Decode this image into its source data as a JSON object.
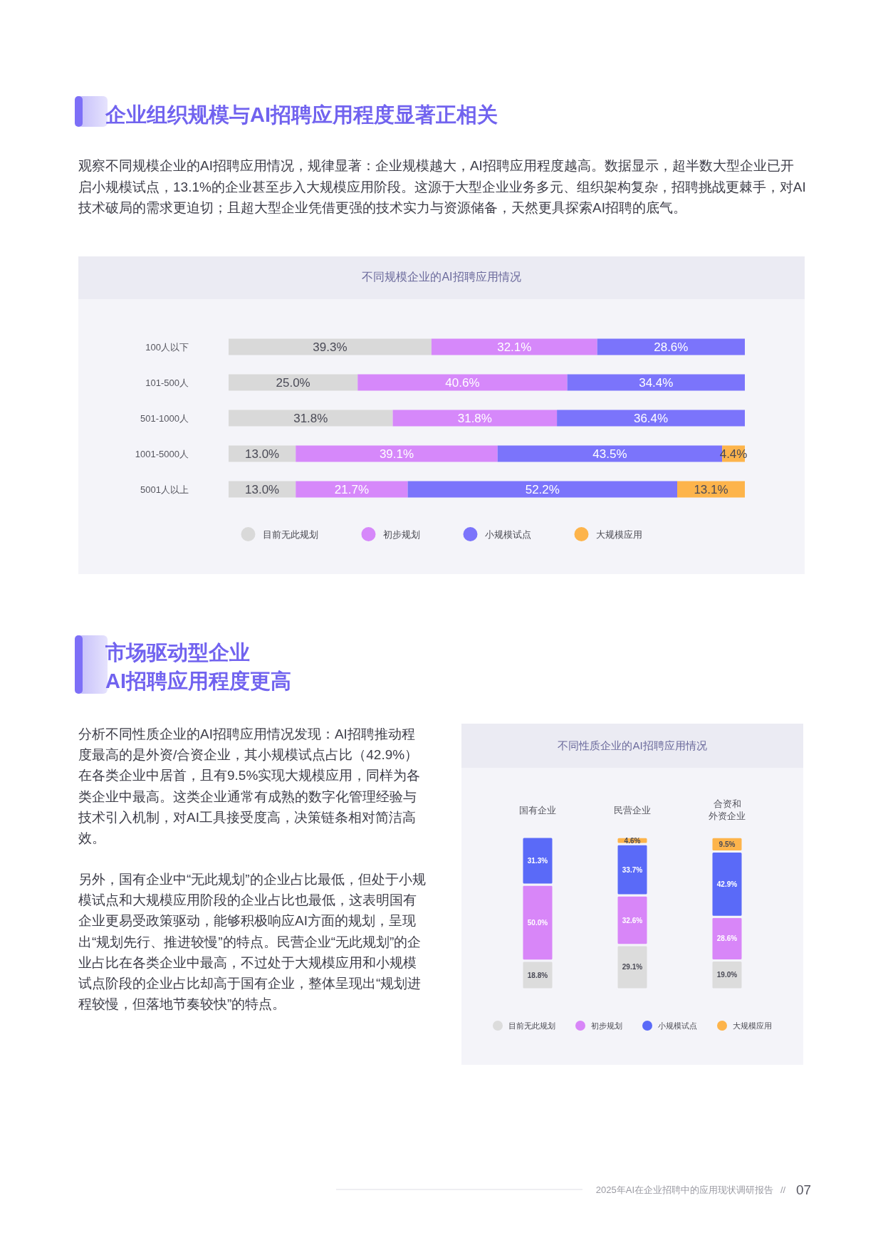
{
  "chart_data": [
    {
      "type": "bar",
      "orientation": "horizontal",
      "stacked": true,
      "title": "不同规模企业的AI招聘应用情况",
      "annotations": [
        "企业组织规模与AI招聘应用程度显著正相关",
        "观察不同规模企业的AI招聘应用情况，规律显著：企业规模越大，AI招聘应用程度越高。数据显示，超半数大型企业已开启小规模试点，13.1%的企业甚至步入大规模应用阶段。这源于大型企业业务多元、组织架构复杂，招聘挑战更棘手，对AI技术破局的需求更迫切；且超大型企业凭借更强的技术实力与资源储备，天然更具探索AI招聘的底气。"
      ],
      "categories": [
        "100人以下",
        "101-500人",
        "501-1000人",
        "1001-5000人",
        "5001人以上"
      ],
      "series": [
        {
          "name": "目前无此规划",
          "color": "#d9d9d9",
          "values": [
            39.3,
            25.0,
            31.8,
            13.0,
            13.0
          ],
          "value_labels": [
            "39.3%",
            "25.0%",
            "31.8%",
            "13.0%",
            "13.0%"
          ]
        },
        {
          "name": "初步规划",
          "color": "#d688fa",
          "values": [
            32.1,
            40.6,
            31.8,
            39.1,
            21.7
          ],
          "value_labels": [
            "32.1%",
            "40.6%",
            "31.8%",
            "39.1%",
            "21.7%"
          ]
        },
        {
          "name": "小规模试点",
          "color": "#7b74fb",
          "values": [
            28.6,
            34.4,
            36.4,
            43.5,
            52.2
          ],
          "value_labels": [
            "28.6%",
            "34.4%",
            "36.4%",
            "43.5%",
            "52.2%"
          ]
        },
        {
          "name": "大规模应用",
          "color": "#fdb44b",
          "values": [
            null,
            null,
            null,
            4.4,
            13.1
          ],
          "value_labels": [
            null,
            null,
            null,
            "4.4%",
            "13.1%"
          ]
        }
      ],
      "legend": "bottom",
      "tick_labels": "y"
    },
    {
      "type": "bar",
      "stacked": true,
      "title": "不同性质企业的AI招聘应用情况",
      "annotations": [
        "市场驱动型企业",
        "AI招聘应用程度更高",
        "分析不同性质企业的AI招聘应用情况发现：AI招聘推动程度最高的是外资/合资企业，其小规模试点占比（42.9%）在各类企业中居首，且有9.5%实现大规模应用，同样为各类企业中最高。这类企业通常有成熟的数字化管理经验与技术引入机制，对AI工具接受度高，决策链条相对简洁高效。",
        "另外，国有企业中“无此规划”的企业占比最低，但处于小规模试点和大规模应用阶段的企业占比也最低，这表明国有企业更易受政策驱动，能够积极响应AI方面的规划，呈现出“规划先行、推进较慢”的特点。民营企业“无此规划”的企业占比在各类企业中最高，不过处于大规模应用和小规模试点阶段的企业占比却高于国有企业，整体呈现出“规划进程较慢，但落地节奏较快”的特点。",
        "2025年AI在企业招聘中的应用现状调研报告",
        "//",
        "07"
      ],
      "categories": [
        "国有企业",
        "民营企业",
        "合资和外资企业"
      ],
      "series": [
        {
          "name": "目前无此规划",
          "color": "#dcdcdc",
          "values": [
            18.8,
            29.1,
            19.0
          ],
          "value_labels": [
            "18.8%",
            "29.1%",
            "19.0%"
          ]
        },
        {
          "name": "初步规划",
          "color": "#d886f8",
          "values": [
            50.0,
            32.6,
            28.6
          ],
          "value_labels": [
            "50.0%",
            "32.6%",
            "28.6%"
          ]
        },
        {
          "name": "小规模试点",
          "color": "#5a6af8",
          "values": [
            31.3,
            33.7,
            42.9
          ],
          "value_labels": [
            "31.3%",
            "33.7%",
            "42.9%"
          ]
        },
        {
          "name": "大规模应用",
          "color": "#fdb44b",
          "values": [
            null,
            4.6,
            9.5
          ],
          "value_labels": [
            null,
            "4.6%",
            "9.5%"
          ]
        }
      ],
      "legend": "bottom",
      "tick_labels": "x"
    }
  ]
}
